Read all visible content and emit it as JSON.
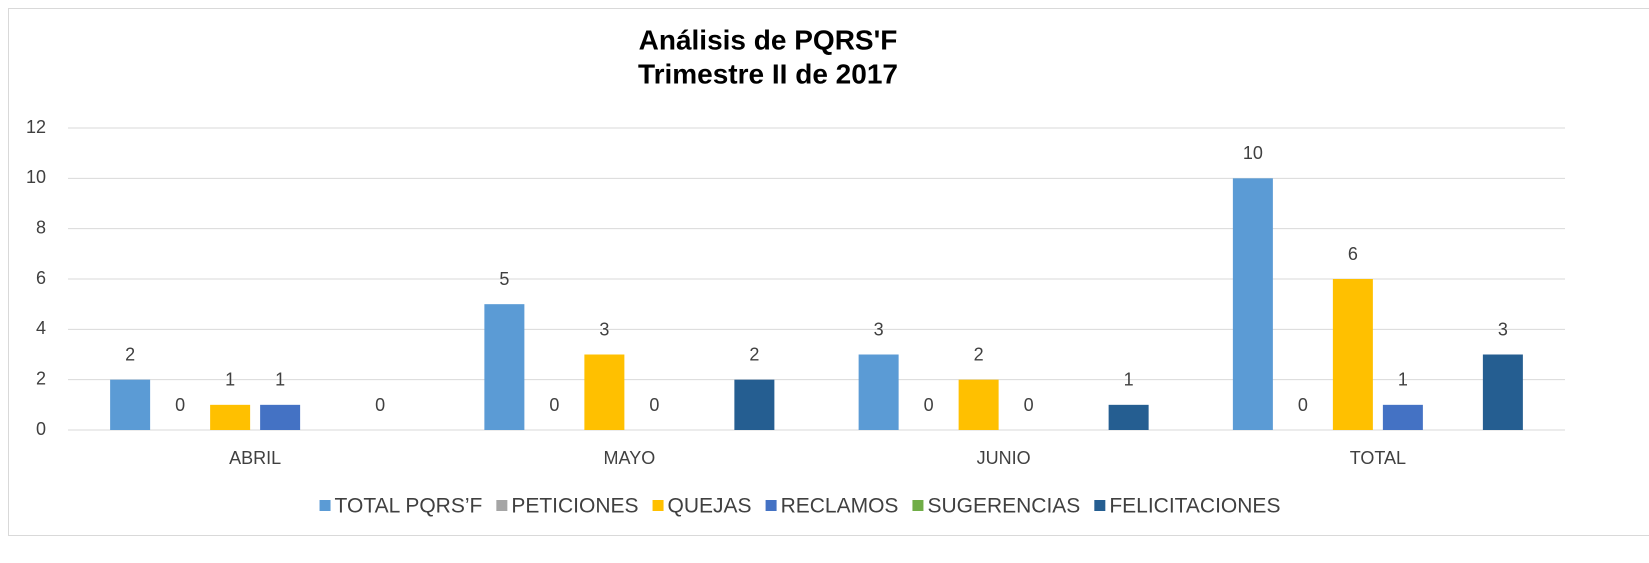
{
  "chart_data": {
    "type": "bar",
    "title": "Análisis de PQRS'F",
    "subtitle": "Trimestre II de 2017",
    "categories": [
      "ABRIL",
      "MAYO",
      "JUNIO",
      "TOTAL"
    ],
    "series": [
      {
        "name": "TOTAL PQRS’F",
        "color": "#5b9bd5",
        "values": [
          2,
          5,
          3,
          10
        ]
      },
      {
        "name": "PETICIONES",
        "color": "#a5a5a5",
        "values": [
          0,
          0,
          0,
          0
        ]
      },
      {
        "name": "QUEJAS",
        "color": "#ffc000",
        "values": [
          1,
          3,
          2,
          6
        ]
      },
      {
        "name": "RECLAMOS",
        "color": "#4472c4",
        "values": [
          1,
          0,
          0,
          1
        ]
      },
      {
        "name": "SUGERENCIAS",
        "color": "#70ad47",
        "values": [
          null,
          null,
          null,
          null
        ]
      },
      {
        "name": "FELICITACIONES",
        "color": "#255e91",
        "values": [
          0,
          2,
          1,
          3
        ]
      }
    ],
    "ylim": [
      0,
      12
    ],
    "yticks": [
      0,
      2,
      4,
      6,
      8,
      10,
      12
    ],
    "grid": true,
    "legend": "bottom"
  }
}
